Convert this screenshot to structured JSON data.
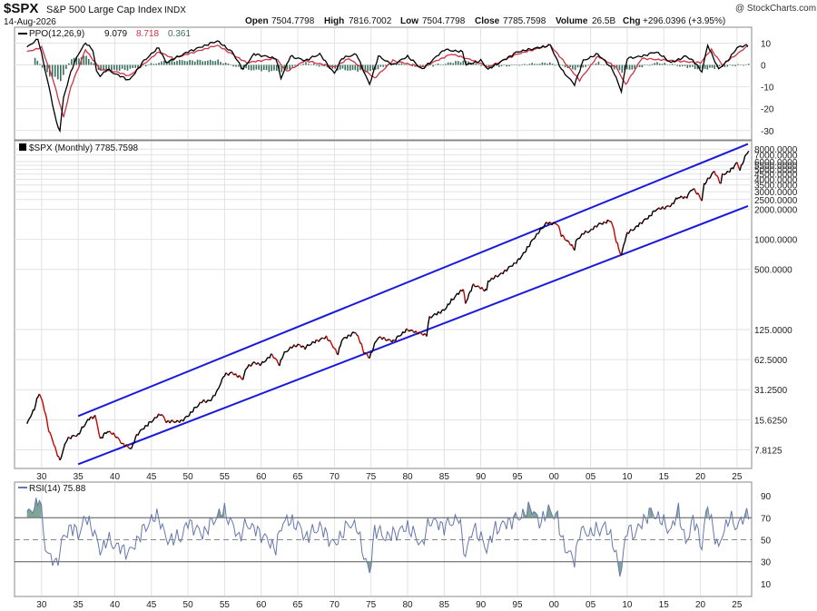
{
  "header": {
    "symbol": "$SPX",
    "name": "S&P 500 Large Cap Index",
    "exchange": "INDX",
    "date": "14-Aug-2026",
    "open_label": "Open",
    "open": "7504.7798",
    "high_label": "High",
    "high": "7816.7002",
    "low_label": "Low",
    "low": "7504.7798",
    "close_label": "Close",
    "close": "7785.7598",
    "volume_label": "Volume",
    "volume": "26.5B",
    "chg_label": "Chg",
    "chg": "+296.0396 (+3.95%)",
    "copyright": "@ StockCharts.com"
  },
  "colors": {
    "price_line": "#000000",
    "price_down": "#cc0000",
    "channel": "#1a1adb",
    "ppo_line": "#000000",
    "ppo_signal": "#cc3344",
    "histogram": "#3a6e5e",
    "rsi_line": "#6677aa",
    "rsi_fill": "#5f8f80",
    "grid": "#e2e2e2"
  },
  "chart_data": [
    {
      "type": "line",
      "panel": "PPO",
      "legend": {
        "label": "PPO(12,26,9)",
        "ppo": "9.079",
        "signal": "8.718",
        "hist": "0.361"
      },
      "y_ticks": [
        "10",
        "0",
        "-10",
        "-20",
        "-30"
      ],
      "ylim": [
        -33,
        16
      ],
      "series": [
        {
          "role": "ppo",
          "x": [
            1928,
            1929.5,
            1930,
            1931,
            1932,
            1932.5,
            1933,
            1934,
            1935,
            1936,
            1937,
            1937.5,
            1938,
            1939,
            1940,
            1942,
            1944,
            1946,
            1947,
            1950,
            1954,
            1956,
            1957.5,
            1959,
            1962,
            1962.7,
            1964,
            1966,
            1968,
            1970,
            1971,
            1973,
            1974.8,
            1976,
            1978,
            1980,
            1982,
            1985,
            1987.5,
            1988,
            1990,
            1991,
            1995,
            1998,
            1999.5,
            2001,
            2002.8,
            2004,
            2006,
            2008,
            2009.2,
            2010,
            2012,
            2014,
            2016,
            2018,
            2019,
            2020.2,
            2021,
            2022.5,
            2024,
            2025,
            2026.5
          ],
          "y": [
            8,
            12,
            5,
            -10,
            -26,
            -30,
            -15,
            -3,
            5,
            10,
            7,
            -3,
            -5,
            -2,
            -4,
            -7,
            2,
            8,
            1,
            6,
            11,
            6,
            -2,
            5,
            3,
            -6,
            4,
            2,
            5,
            -4,
            3,
            5,
            -9,
            4,
            0,
            4,
            -2,
            7,
            6,
            0,
            2,
            -2,
            6,
            8,
            9,
            -2,
            -9,
            2,
            5,
            -2,
            -12,
            3,
            4,
            6,
            1,
            4,
            2,
            -3,
            9,
            -2,
            3,
            8,
            9.079
          ]
        },
        {
          "role": "signal",
          "x": [
            1928,
            1930,
            1931.5,
            1933,
            1934,
            1936,
            1938,
            1940,
            1942,
            1946,
            1948,
            1954,
            1958,
            1962,
            1963.5,
            1966,
            1970,
            1972,
            1975.5,
            1978,
            1982,
            1986,
            1989,
            1991,
            1995,
            1999.5,
            2001.5,
            2003.5,
            2006,
            2008.5,
            2009.8,
            2012,
            2016,
            2020,
            2021.5,
            2023,
            2026.5
          ],
          "y": [
            6,
            8,
            -6,
            -24,
            -10,
            7,
            -2,
            -3,
            -5,
            6,
            3,
            9,
            1,
            3,
            -3,
            2,
            -1,
            3,
            -6,
            2,
            -1,
            5,
            2,
            -1,
            5,
            9,
            1,
            -7,
            4,
            -1,
            -9,
            3,
            2,
            1,
            7,
            0,
            8.718
          ]
        },
        {
          "role": "histogram",
          "x": [
            1929,
            1931,
            1932.5,
            1934,
            1936,
            1938,
            1942,
            1947,
            1954,
            1957.5,
            1962.7,
            1966,
            1970,
            1974.8,
            1978,
            1982,
            1987.5,
            1991,
            1999,
            2002.8,
            2006,
            2009.2,
            2014,
            2020.2,
            2022.5,
            2026.5
          ],
          "y": [
            3,
            -5,
            -7,
            3,
            4,
            -3,
            -2,
            2,
            2,
            -2,
            -3,
            1,
            -2,
            -3,
            1,
            -1,
            2,
            -1,
            1,
            -2,
            1,
            -3,
            1,
            -2,
            -1,
            0.361
          ]
        }
      ]
    },
    {
      "type": "line",
      "panel": "Price",
      "legend": "$SPX (Monthly) 7785.7598",
      "y_scale": "log",
      "y_ticks": [
        "8000.0000",
        "7000.0000",
        "6000.0000",
        "5500.0000",
        "5000.0000",
        "4500.0000",
        "4000.0000",
        "3500.0000",
        "3000.0000",
        "2500.0000",
        "2000.0000",
        "1000.0000",
        "500.0000",
        "125.0000",
        "62.5000",
        "31.2500",
        "15.6250",
        "7.8125"
      ],
      "ylim": [
        5.3,
        9300
      ],
      "series": [
        {
          "role": "price",
          "x": [
            1928,
            1929,
            1929.7,
            1930.5,
            1931,
            1932,
            1932.5,
            1933.5,
            1934,
            1935,
            1936.5,
            1937.3,
            1938,
            1939,
            1940,
            1941,
            1942.3,
            1943,
            1945,
            1946.3,
            1947,
            1949,
            1950,
            1952,
            1953,
            1954,
            1955,
            1956,
            1957.5,
            1958,
            1959,
            1960,
            1961.5,
            1962.5,
            1963,
            1964,
            1965,
            1966,
            1967,
            1968.9,
            1970.5,
            1971,
            1972.9,
            1974,
            1974.8,
            1976,
            1978,
            1980,
            1981,
            1982.6,
            1983,
            1985,
            1987.6,
            1987.9,
            1989,
            1990.8,
            1991,
            1993,
            1995,
            1996,
            1997,
            1998,
            1999,
            2000.5,
            2001,
            2002.8,
            2003,
            2004,
            2005,
            2006,
            2007.8,
            2008.5,
            2009.2,
            2010,
            2011,
            2013,
            2014,
            2015,
            2016,
            2017,
            2018,
            2019,
            2020.2,
            2020.5,
            2021.9,
            2022.8,
            2023,
            2024,
            2025,
            2025.4,
            2026.6
          ],
          "y": [
            14,
            20,
            29,
            18,
            12,
            7.5,
            6,
            10,
            10.5,
            11,
            16,
            17,
            10,
            12,
            11,
            9,
            8,
            11,
            15,
            18,
            15,
            15,
            17,
            24,
            24,
            30,
            44,
            46,
            40,
            52,
            58,
            56,
            70,
            55,
            70,
            82,
            88,
            82,
            92,
            105,
            70,
            98,
            118,
            75,
            65,
            105,
            95,
            125,
            118,
            110,
            165,
            195,
            320,
            225,
            350,
            305,
            380,
            460,
            600,
            740,
            960,
            1200,
            1460,
            1420,
            1100,
            800,
            950,
            1150,
            1220,
            1400,
            1540,
            950,
            680,
            1150,
            1280,
            1680,
            2000,
            2060,
            2180,
            2650,
            2600,
            3230,
            2470,
            3500,
            4770,
            3580,
            4400,
            4800,
            5800,
            4950,
            7785.7598
          ]
        }
      ]
    },
    {
      "type": "line",
      "panel": "RSI",
      "legend": "RSI(14) 75.88",
      "y_ticks": [
        "90",
        "70",
        "50",
        "30",
        "10"
      ],
      "ylim": [
        0,
        100
      ],
      "series": [
        {
          "role": "rsi",
          "x": [
            1928,
            1929,
            1929.7,
            1930.5,
            1931,
            1932,
            1933,
            1934,
            1935,
            1936,
            1937,
            1938,
            1939,
            1940,
            1942,
            1944,
            1945,
            1946,
            1947,
            1949,
            1950,
            1952,
            1954,
            1955,
            1957,
            1958,
            1960,
            1962,
            1963,
            1965,
            1966,
            1968,
            1970,
            1972,
            1973,
            1974.8,
            1975.5,
            1977,
            1979,
            1980,
            1982,
            1983,
            1985,
            1987,
            1987.9,
            1989,
            1990.8,
            1992,
            1995,
            1996,
            1997,
            1998,
            1999,
            2000.5,
            2001,
            2002.8,
            2003.5,
            2005,
            2007,
            2008,
            2009,
            2010,
            2011,
            2013,
            2014,
            2016,
            2017,
            2018,
            2019,
            2020.2,
            2020.5,
            2021,
            2022.5,
            2023,
            2024,
            2025,
            2026.6
          ],
          "y": [
            72,
            80,
            88,
            45,
            35,
            28,
            52,
            62,
            55,
            70,
            60,
            40,
            50,
            45,
            38,
            60,
            68,
            72,
            50,
            52,
            66,
            55,
            72,
            76,
            52,
            65,
            55,
            42,
            68,
            64,
            52,
            62,
            45,
            65,
            62,
            18,
            60,
            52,
            58,
            62,
            45,
            68,
            62,
            70,
            35,
            62,
            42,
            60,
            70,
            74,
            80,
            64,
            76,
            72,
            50,
            30,
            58,
            56,
            62,
            50,
            18,
            60,
            55,
            75,
            72,
            58,
            78,
            45,
            70,
            44,
            62,
            80,
            40,
            56,
            70,
            62,
            75.88
          ]
        }
      ]
    }
  ],
  "x_axis": {
    "ticks": [
      "30",
      "35",
      "40",
      "45",
      "50",
      "55",
      "60",
      "65",
      "70",
      "75",
      "80",
      "85",
      "90",
      "95",
      "00",
      "05",
      "10",
      "15",
      "20",
      "25"
    ]
  },
  "channel_lines": [
    {
      "role": "upper",
      "from": [
        1935,
        17
      ],
      "to": [
        2026.5,
        9000
      ]
    },
    {
      "role": "lower",
      "from": [
        1935,
        5.6
      ],
      "to": [
        2026.5,
        2150
      ]
    }
  ]
}
